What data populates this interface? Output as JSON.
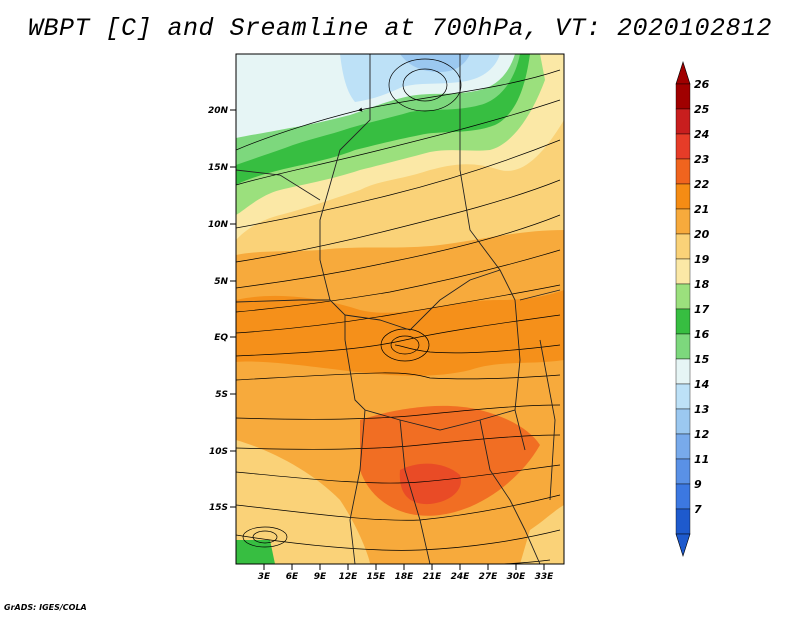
{
  "title": "WBPT [C] and Sreamline at 700hPa, VT: 2020102812",
  "footer": "GrADS: IGES/COLA",
  "map": {
    "lat_labels": [
      "20N",
      "15N",
      "10N",
      "5N",
      "EQ",
      "5S",
      "10S",
      "15S"
    ],
    "lon_labels": [
      "3E",
      "6E",
      "9E",
      "12E",
      "15E",
      "18E",
      "21E",
      "24E",
      "27E",
      "30E",
      "33E"
    ]
  },
  "colorbar": {
    "levels": [
      "26",
      "25",
      "24",
      "23",
      "22",
      "21",
      "20",
      "19",
      "18",
      "17",
      "16",
      "15",
      "14",
      "13",
      "12",
      "11",
      "9",
      "7"
    ],
    "colors": [
      "#a00000",
      "#c81e1e",
      "#e63c28",
      "#f0641e",
      "#f58c14",
      "#f7aa3c",
      "#fad278",
      "#fbe8a6",
      "#9be07d",
      "#37be41",
      "#7dd87d",
      "#e6f5f5",
      "#bde1f7",
      "#9bc8f0",
      "#78aaeb",
      "#5a91e6",
      "#3c78e1",
      "#1e5acd"
    ]
  }
}
